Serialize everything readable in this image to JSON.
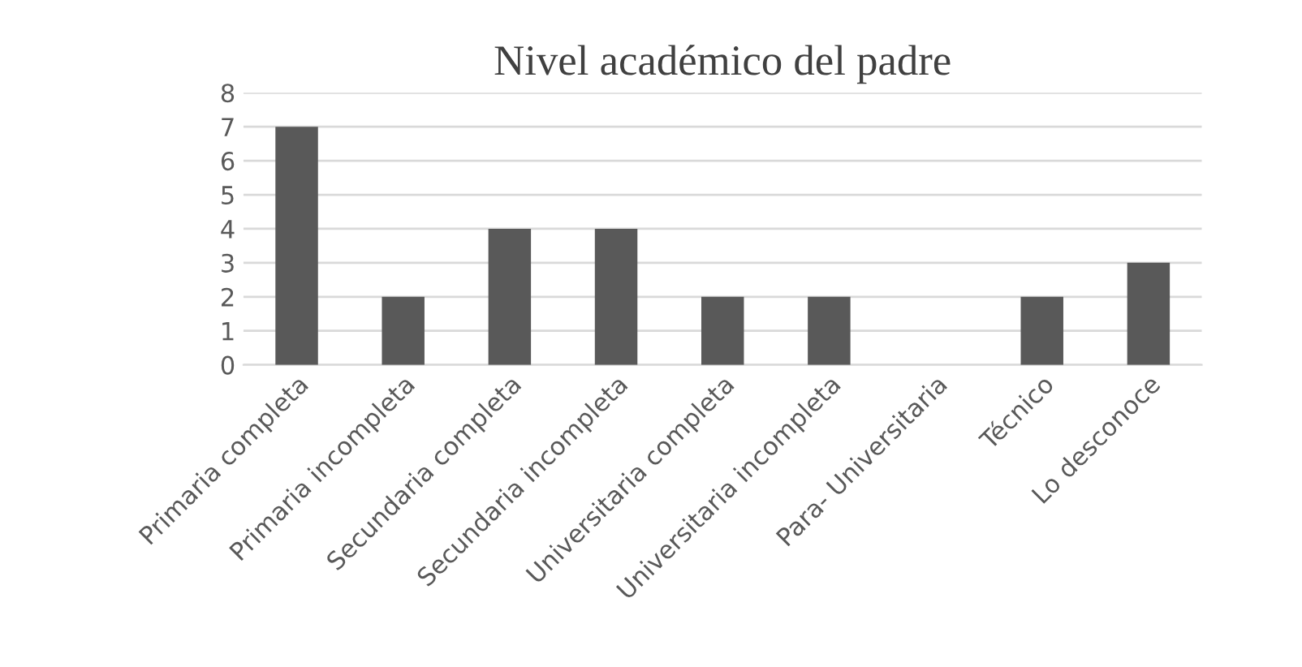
{
  "chart_data": {
    "type": "bar",
    "title": "Nivel académico del padre",
    "categories": [
      "Primaria completa",
      "Primaria incompleta",
      "Secundaria completa",
      "Secundaria incompleta",
      "Universitaria completa",
      "Universitaria incompleta",
      "Para- Universitaria",
      "Técnico",
      "Lo desconoce"
    ],
    "values": [
      7,
      2,
      4,
      4,
      2,
      2,
      0,
      2,
      3
    ],
    "color": "#595959",
    "ylim": [
      0,
      8
    ],
    "yticks": [
      0,
      1,
      2,
      3,
      4,
      5,
      6,
      7,
      8
    ],
    "grid": "y"
  }
}
